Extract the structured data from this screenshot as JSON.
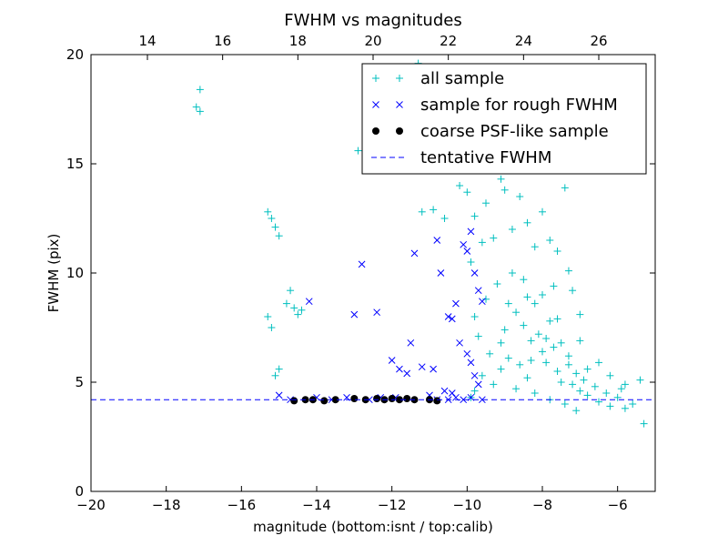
{
  "chart_data": {
    "type": "scatter",
    "title": "FWHM vs magnitudes",
    "xlabel": "magnitude (bottom:isnt / top:calib)",
    "ylabel": "FWHM (pix)",
    "xlim": [
      -20,
      -5
    ],
    "ylim": [
      0,
      20
    ],
    "x_ticks": [
      -20,
      -18,
      -16,
      -14,
      -12,
      -10,
      -8,
      -6
    ],
    "x_tick_labels": [
      "−20",
      "−18",
      "−16",
      "−14",
      "−12",
      "−10",
      "−8",
      "−6"
    ],
    "y_ticks": [
      0,
      5,
      10,
      15,
      20
    ],
    "y_tick_labels": [
      "0",
      "5",
      "10",
      "15",
      "20"
    ],
    "top_axis": {
      "xlim": [
        12.5,
        27.5
      ],
      "ticks": [
        14,
        16,
        18,
        20,
        22,
        24,
        26
      ],
      "tick_labels": [
        "14",
        "16",
        "18",
        "20",
        "22",
        "24",
        "26"
      ]
    },
    "grid": false,
    "legend_position": "top-right",
    "series": [
      {
        "name": "all sample",
        "marker": "plus",
        "color": "#00bfbf",
        "points": [
          [
            -17.1,
            18.4
          ],
          [
            -17.2,
            17.6
          ],
          [
            -17.1,
            17.4
          ],
          [
            -15.3,
            12.8
          ],
          [
            -15.2,
            12.5
          ],
          [
            -15.1,
            12.1
          ],
          [
            -15.0,
            11.7
          ],
          [
            -15.3,
            8.0
          ],
          [
            -15.2,
            7.5
          ],
          [
            -14.7,
            9.2
          ],
          [
            -14.8,
            8.6
          ],
          [
            -14.6,
            8.4
          ],
          [
            -14.5,
            8.1
          ],
          [
            -14.4,
            8.3
          ],
          [
            -15.0,
            5.6
          ],
          [
            -15.1,
            5.3
          ],
          [
            -12.9,
            15.6
          ],
          [
            -11.3,
            19.6
          ],
          [
            -11.2,
            12.8
          ],
          [
            -10.9,
            12.9
          ],
          [
            -10.6,
            12.5
          ],
          [
            -10.2,
            14.0
          ],
          [
            -10.0,
            13.7
          ],
          [
            -9.8,
            12.6
          ],
          [
            -9.6,
            11.4
          ],
          [
            -9.9,
            10.5
          ],
          [
            -9.5,
            13.2
          ],
          [
            -9.3,
            11.6
          ],
          [
            -9.1,
            14.3
          ],
          [
            -9.0,
            13.8
          ],
          [
            -8.8,
            12.0
          ],
          [
            -8.6,
            13.5
          ],
          [
            -8.4,
            12.3
          ],
          [
            -8.2,
            11.2
          ],
          [
            -8.0,
            12.8
          ],
          [
            -7.8,
            11.5
          ],
          [
            -7.6,
            11.0
          ],
          [
            -7.4,
            13.9
          ],
          [
            -7.3,
            10.1
          ],
          [
            -7.2,
            9.2
          ],
          [
            -7.0,
            8.1
          ],
          [
            -7.5,
            6.8
          ],
          [
            -7.8,
            7.8
          ],
          [
            -8.2,
            8.6
          ],
          [
            -8.5,
            9.7
          ],
          [
            -8.8,
            10.0
          ],
          [
            -9.2,
            9.5
          ],
          [
            -9.5,
            8.8
          ],
          [
            -9.8,
            8.0
          ],
          [
            -9.7,
            7.1
          ],
          [
            -9.4,
            6.3
          ],
          [
            -9.0,
            7.4
          ],
          [
            -8.7,
            8.2
          ],
          [
            -8.5,
            7.6
          ],
          [
            -8.3,
            6.9
          ],
          [
            -8.1,
            7.2
          ],
          [
            -8.0,
            6.4
          ],
          [
            -7.9,
            5.9
          ],
          [
            -7.7,
            6.6
          ],
          [
            -7.6,
            5.5
          ],
          [
            -7.5,
            5.0
          ],
          [
            -7.3,
            5.8
          ],
          [
            -7.2,
            4.9
          ],
          [
            -7.1,
            5.4
          ],
          [
            -7.0,
            4.6
          ],
          [
            -6.9,
            5.1
          ],
          [
            -6.8,
            4.4
          ],
          [
            -6.6,
            4.8
          ],
          [
            -6.5,
            4.1
          ],
          [
            -6.3,
            4.5
          ],
          [
            -6.2,
            3.9
          ],
          [
            -6.0,
            4.3
          ],
          [
            -5.9,
            4.7
          ],
          [
            -5.8,
            3.8
          ],
          [
            -5.6,
            4.0
          ],
          [
            -5.4,
            5.1
          ],
          [
            -5.3,
            3.1
          ],
          [
            -8.4,
            5.2
          ],
          [
            -8.6,
            5.8
          ],
          [
            -8.9,
            6.1
          ],
          [
            -9.1,
            5.6
          ],
          [
            -9.3,
            4.9
          ],
          [
            -9.6,
            5.3
          ],
          [
            -9.8,
            4.6
          ],
          [
            -9.9,
            4.3
          ],
          [
            -8.7,
            4.7
          ],
          [
            -8.2,
            4.5
          ],
          [
            -7.8,
            4.2
          ],
          [
            -7.4,
            4.0
          ],
          [
            -7.1,
            3.7
          ],
          [
            -8.0,
            9.0
          ],
          [
            -8.4,
            8.9
          ],
          [
            -7.7,
            9.4
          ],
          [
            -8.9,
            8.6
          ],
          [
            -9.1,
            6.8
          ],
          [
            -8.3,
            6.0
          ],
          [
            -7.9,
            7.0
          ],
          [
            -7.6,
            7.9
          ],
          [
            -7.3,
            6.2
          ],
          [
            -7.0,
            6.9
          ],
          [
            -6.8,
            5.6
          ],
          [
            -6.5,
            5.9
          ],
          [
            -6.2,
            5.3
          ],
          [
            -5.8,
            4.9
          ]
        ]
      },
      {
        "name": "sample for rough FWHM",
        "marker": "x",
        "color": "#0000ff",
        "points": [
          [
            -15.0,
            4.4
          ],
          [
            -14.7,
            4.2
          ],
          [
            -14.2,
            8.7
          ],
          [
            -14.0,
            4.3
          ],
          [
            -13.6,
            4.2
          ],
          [
            -13.0,
            8.1
          ],
          [
            -12.8,
            10.4
          ],
          [
            -12.4,
            8.2
          ],
          [
            -12.0,
            6.0
          ],
          [
            -11.8,
            5.6
          ],
          [
            -11.6,
            5.4
          ],
          [
            -11.4,
            10.9
          ],
          [
            -11.2,
            5.7
          ],
          [
            -11.0,
            4.4
          ],
          [
            -10.9,
            5.6
          ],
          [
            -10.8,
            11.5
          ],
          [
            -10.7,
            10.0
          ],
          [
            -10.5,
            8.0
          ],
          [
            -10.4,
            7.9
          ],
          [
            -10.3,
            8.6
          ],
          [
            -10.1,
            11.3
          ],
          [
            -10.0,
            11.0
          ],
          [
            -9.9,
            11.9
          ],
          [
            -9.8,
            10.0
          ],
          [
            -9.7,
            9.2
          ],
          [
            -9.6,
            8.7
          ],
          [
            -10.2,
            6.8
          ],
          [
            -10.0,
            6.3
          ],
          [
            -9.9,
            5.9
          ],
          [
            -9.8,
            5.3
          ],
          [
            -9.7,
            4.9
          ],
          [
            -10.6,
            4.6
          ],
          [
            -10.4,
            4.5
          ],
          [
            -12.3,
            4.3
          ],
          [
            -11.9,
            4.3
          ],
          [
            -10.8,
            4.2
          ],
          [
            -10.5,
            4.2
          ],
          [
            -10.3,
            4.3
          ],
          [
            -10.1,
            4.2
          ],
          [
            -9.9,
            4.3
          ],
          [
            -9.6,
            4.2
          ],
          [
            -13.2,
            4.3
          ],
          [
            -12.6,
            4.2
          ],
          [
            -11.5,
            6.8
          ]
        ]
      },
      {
        "name": "coarse PSF-like sample",
        "marker": "circle",
        "color": "#000000",
        "points": [
          [
            -14.6,
            4.15
          ],
          [
            -14.3,
            4.2
          ],
          [
            -14.1,
            4.2
          ],
          [
            -13.8,
            4.15
          ],
          [
            -13.5,
            4.2
          ],
          [
            -13.0,
            4.25
          ],
          [
            -12.7,
            4.2
          ],
          [
            -12.4,
            4.25
          ],
          [
            -12.2,
            4.2
          ],
          [
            -12.0,
            4.25
          ],
          [
            -11.8,
            4.2
          ],
          [
            -11.6,
            4.25
          ],
          [
            -11.4,
            4.2
          ],
          [
            -11.0,
            4.2
          ],
          [
            -10.8,
            4.15
          ]
        ]
      },
      {
        "name": "tentative FWHM",
        "marker": "dashed-line",
        "color": "#0000ff",
        "value": 4.2
      }
    ]
  }
}
